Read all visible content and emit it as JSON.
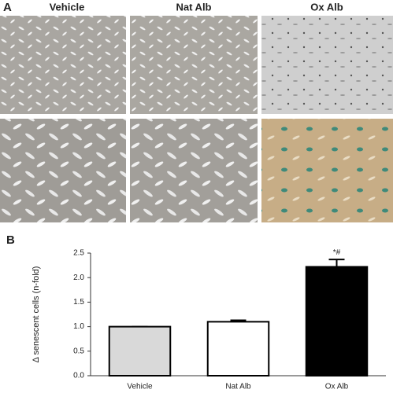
{
  "chart_data": {
    "type": "bar",
    "panel_labels": [
      "A",
      "B"
    ],
    "image_columns": [
      "Vehicle",
      "Nat Alb",
      "Ox Alb"
    ],
    "ylabel": "Δ senescent cells (n-fold)",
    "categories": [
      "Vehicle",
      "Nat Alb",
      "Ox Alb"
    ],
    "values": [
      1.0,
      1.1,
      2.22
    ],
    "errors": [
      0,
      0.03,
      0.15
    ],
    "colors": [
      "#d9d9d9",
      "#ffffff",
      "#000000"
    ],
    "annotation": "*#",
    "ylim": [
      0,
      2.5
    ],
    "yticks": [
      {
        "value": 0,
        "label": "0.0"
      },
      0.5,
      {
        "value": 1,
        "label": "1.0"
      },
      1.5,
      {
        "value": 2,
        "label": "2.0"
      },
      2.5
    ]
  }
}
